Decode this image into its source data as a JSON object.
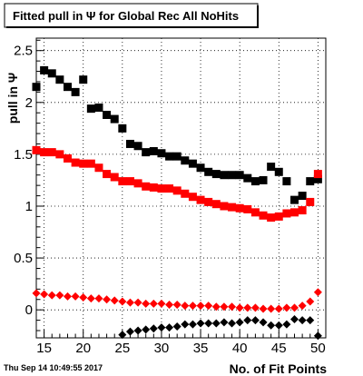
{
  "chart_data": {
    "type": "scatter",
    "title": "Fitted pull in Ψ  for Global Rec All NoHits",
    "xlabel": "No. of Fit Points",
    "ylabel": "pull in Ψ",
    "xlim": [
      14,
      51
    ],
    "ylim": [
      -0.27,
      2.62
    ],
    "grid": true,
    "x_ticks": [
      15,
      20,
      25,
      30,
      35,
      40,
      45,
      50
    ],
    "y_ticks": [
      0,
      0.5,
      1,
      1.5,
      2,
      2.5
    ],
    "x_tick_labels": [
      "15",
      "20",
      "25",
      "30",
      "35",
      "40",
      "45",
      "50"
    ],
    "y_tick_labels": [
      "0",
      "0.5",
      "1",
      "1.5",
      "2",
      "2.5"
    ],
    "timestamp": "Thu Sep 14 10:49:55 2017",
    "series": [
      {
        "marker": "square",
        "color": "#000000",
        "x": [
          14,
          15,
          16,
          17,
          18,
          19,
          20,
          21,
          22,
          23,
          24,
          25,
          26,
          27,
          28,
          29,
          30,
          31,
          32,
          33,
          34,
          35,
          36,
          37,
          38,
          39,
          40,
          41,
          42,
          43,
          44,
          45,
          46,
          47,
          48,
          49,
          50
        ],
        "y": [
          2.15,
          2.31,
          2.28,
          2.22,
          2.15,
          2.1,
          2.22,
          1.94,
          1.95,
          1.88,
          1.84,
          1.75,
          1.6,
          1.58,
          1.52,
          1.53,
          1.51,
          1.48,
          1.48,
          1.44,
          1.41,
          1.37,
          1.33,
          1.31,
          1.3,
          1.3,
          1.3,
          1.27,
          1.24,
          1.25,
          1.38,
          1.33,
          1.24,
          1.06,
          1.1,
          1.24,
          1.26
        ]
      },
      {
        "marker": "square",
        "color": "#ff0000",
        "x": [
          14,
          15,
          16,
          17,
          18,
          19,
          20,
          21,
          22,
          23,
          24,
          25,
          26,
          27,
          28,
          29,
          30,
          31,
          32,
          33,
          34,
          35,
          36,
          37,
          38,
          39,
          40,
          41,
          42,
          43,
          44,
          45,
          46,
          47,
          48,
          49,
          50
        ],
        "y": [
          1.54,
          1.52,
          1.52,
          1.5,
          1.46,
          1.42,
          1.41,
          1.41,
          1.37,
          1.31,
          1.28,
          1.24,
          1.24,
          1.22,
          1.19,
          1.18,
          1.17,
          1.17,
          1.15,
          1.12,
          1.09,
          1.06,
          1.04,
          1.02,
          1.0,
          0.99,
          0.98,
          0.97,
          0.94,
          0.91,
          0.89,
          0.9,
          0.93,
          0.94,
          0.96,
          1.04,
          1.31
        ]
      },
      {
        "marker": "diamond",
        "color": "#ff0000",
        "x": [
          14,
          15,
          16,
          17,
          18,
          19,
          20,
          21,
          22,
          23,
          24,
          25,
          26,
          27,
          28,
          29,
          30,
          31,
          32,
          33,
          34,
          35,
          36,
          37,
          38,
          39,
          40,
          41,
          42,
          43,
          44,
          45,
          46,
          47,
          48,
          49,
          50
        ],
        "y": [
          0.16,
          0.15,
          0.14,
          0.14,
          0.13,
          0.13,
          0.12,
          0.11,
          0.11,
          0.1,
          0.09,
          0.08,
          0.07,
          0.07,
          0.06,
          0.06,
          0.06,
          0.05,
          0.05,
          0.04,
          0.04,
          0.04,
          0.04,
          0.03,
          0.03,
          0.03,
          0.02,
          0.02,
          0.02,
          0.01,
          0.01,
          0.01,
          0.02,
          0.02,
          0.04,
          0.08,
          0.17
        ]
      },
      {
        "marker": "diamond",
        "color": "#000000",
        "x": [
          25,
          26,
          27,
          28,
          29,
          30,
          31,
          32,
          33,
          34,
          35,
          36,
          37,
          38,
          39,
          40,
          41,
          42,
          43,
          44,
          45,
          46,
          47,
          48,
          49,
          50
        ],
        "y": [
          -0.24,
          -0.21,
          -0.2,
          -0.19,
          -0.18,
          -0.17,
          -0.17,
          -0.16,
          -0.14,
          -0.14,
          -0.13,
          -0.13,
          -0.13,
          -0.12,
          -0.13,
          -0.12,
          -0.1,
          -0.1,
          -0.12,
          -0.15,
          -0.15,
          -0.14,
          -0.09,
          -0.1,
          -0.1,
          -0.25
        ]
      }
    ]
  }
}
